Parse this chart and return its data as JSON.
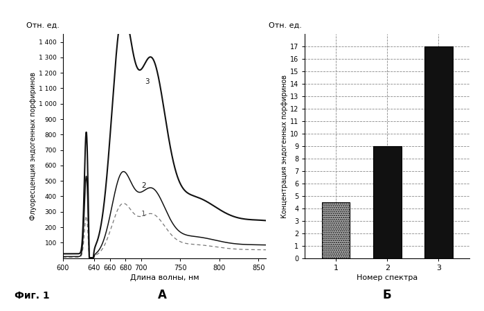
{
  "left_title": "Отн. ед.",
  "left_ylabel": "Флуоресценция эндогенных порфиринов",
  "left_xlabel": "Длина волны, нм",
  "left_ylim": [
    0,
    1450
  ],
  "left_xlim": [
    600,
    860
  ],
  "left_yticks": [
    100,
    200,
    300,
    400,
    500,
    600,
    700,
    800,
    900,
    1000,
    1100,
    1200,
    1300,
    1400
  ],
  "left_ytick_labels": [
    "100",
    "200",
    "300",
    "400",
    "500",
    "600",
    "700",
    "800",
    "900",
    "1 000",
    "1 100",
    "1 200",
    "1 300",
    "1 400"
  ],
  "left_xticks": [
    600,
    640,
    660,
    680,
    700,
    750,
    800,
    850
  ],
  "right_title": "Отн. ед.",
  "right_ylabel": "Концентрация эндогенных порфиринов",
  "right_xlabel": "Номер спектра",
  "right_ylim": [
    0,
    18
  ],
  "right_yticks": [
    0,
    1,
    2,
    3,
    4,
    5,
    6,
    7,
    8,
    9,
    10,
    11,
    12,
    13,
    14,
    15,
    16,
    17
  ],
  "bar_categories": [
    "1",
    "2",
    "3"
  ],
  "bar_values": [
    4.5,
    9.0,
    17.0
  ],
  "panel_A": "A",
  "panel_B": "Б",
  "fig_label": "Фиг. 1",
  "background_color": "#ffffff"
}
